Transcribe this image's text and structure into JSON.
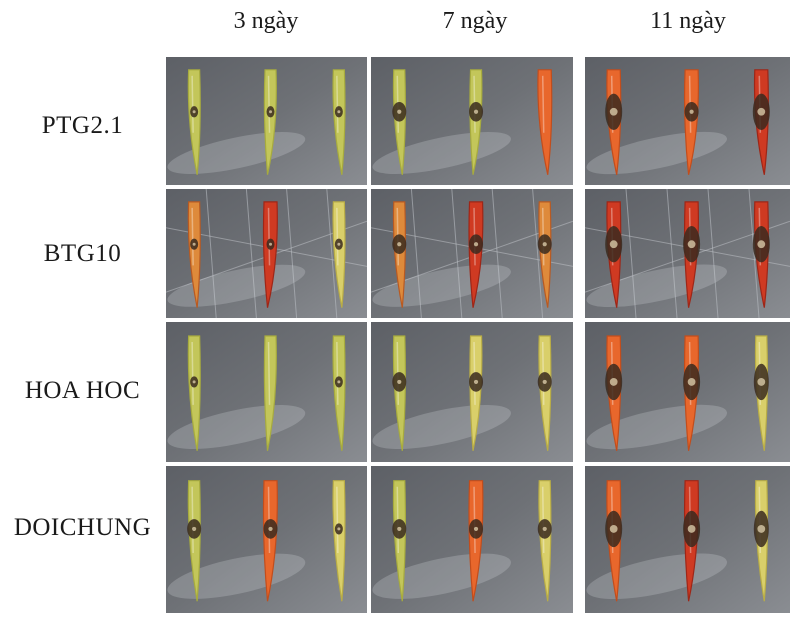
{
  "columns": [
    "3 ngày",
    "7 ngày",
    "11 ngày"
  ],
  "rows": [
    "PTG2.1",
    "BTG10",
    "HOA HOC",
    "DOICHUNG"
  ],
  "colors": {
    "background_gray": "#6e7176",
    "chili_green": "#c3c65a",
    "chili_yellow": "#d9cf6a",
    "chili_orange": "#e8672c",
    "chili_red": "#cf3a22",
    "lesion_dark": "#3a2a1e"
  },
  "panels": [
    [
      {
        "peppers": [
          {
            "color": "green",
            "lesion": "small"
          },
          {
            "color": "green",
            "lesion": "small"
          },
          {
            "color": "green",
            "lesion": "small"
          }
        ]
      },
      {
        "peppers": [
          {
            "color": "green",
            "lesion": "medium"
          },
          {
            "color": "green",
            "lesion": "medium"
          },
          {
            "color": "orange",
            "lesion": "none"
          }
        ]
      },
      {
        "peppers": [
          {
            "color": "orange",
            "lesion": "large"
          },
          {
            "color": "orange",
            "lesion": "medium"
          },
          {
            "color": "red",
            "lesion": "large"
          }
        ]
      }
    ],
    [
      {
        "peppers": [
          {
            "color": "yellow-red",
            "lesion": "small"
          },
          {
            "color": "red",
            "lesion": "small"
          },
          {
            "color": "yellow",
            "lesion": "small"
          }
        ]
      },
      {
        "peppers": [
          {
            "color": "yellow-red",
            "lesion": "medium"
          },
          {
            "color": "red",
            "lesion": "medium"
          },
          {
            "color": "yellow-red",
            "lesion": "medium"
          }
        ]
      },
      {
        "peppers": [
          {
            "color": "red",
            "lesion": "large"
          },
          {
            "color": "red",
            "lesion": "large"
          },
          {
            "color": "red",
            "lesion": "large"
          }
        ]
      }
    ],
    [
      {
        "peppers": [
          {
            "color": "green",
            "lesion": "small"
          },
          {
            "color": "green",
            "lesion": "none"
          },
          {
            "color": "green",
            "lesion": "small"
          }
        ]
      },
      {
        "peppers": [
          {
            "color": "green",
            "lesion": "medium"
          },
          {
            "color": "yellow",
            "lesion": "medium"
          },
          {
            "color": "yellow",
            "lesion": "medium"
          }
        ]
      },
      {
        "peppers": [
          {
            "color": "orange",
            "lesion": "large"
          },
          {
            "color": "orange",
            "lesion": "large"
          },
          {
            "color": "yellow",
            "lesion": "large"
          }
        ]
      }
    ],
    [
      {
        "peppers": [
          {
            "color": "green",
            "lesion": "medium"
          },
          {
            "color": "orange",
            "lesion": "medium"
          },
          {
            "color": "yellow",
            "lesion": "small"
          }
        ]
      },
      {
        "peppers": [
          {
            "color": "green",
            "lesion": "medium"
          },
          {
            "color": "orange",
            "lesion": "medium"
          },
          {
            "color": "yellow",
            "lesion": "medium"
          }
        ]
      },
      {
        "peppers": [
          {
            "color": "orange",
            "lesion": "large"
          },
          {
            "color": "red",
            "lesion": "large"
          },
          {
            "color": "yellow",
            "lesion": "large"
          }
        ]
      }
    ]
  ]
}
